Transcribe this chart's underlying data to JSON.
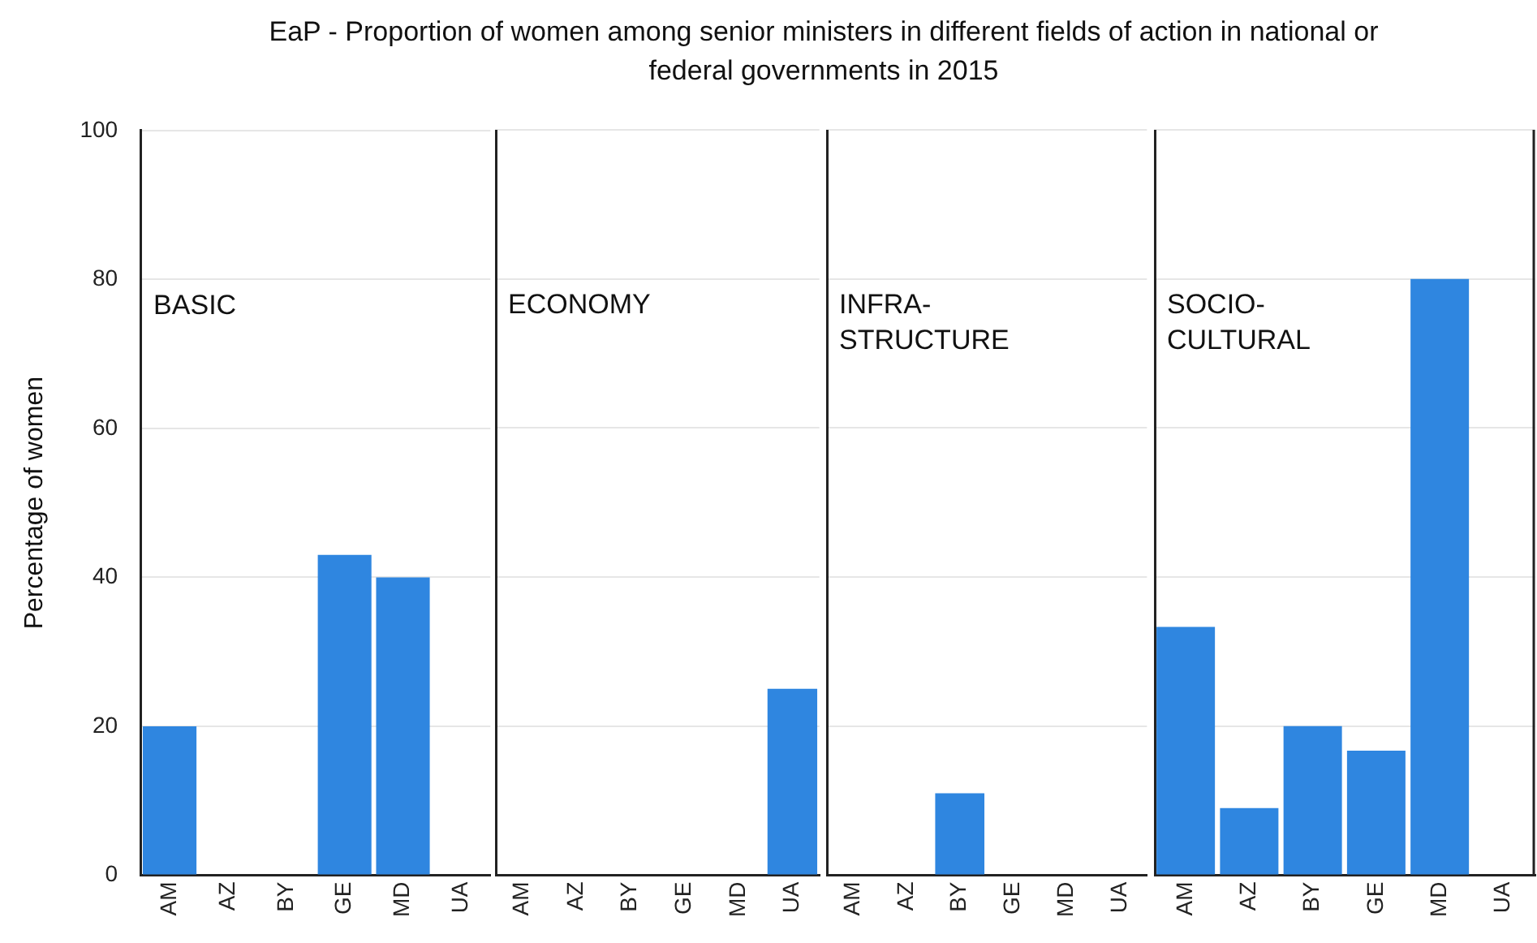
{
  "chart_data": [
    {
      "type": "bar",
      "title": "EaP - Proportion of women among senior ministers in different fields of action in national or federal governments in 2015",
      "ylabel": "Percentage of women",
      "annotations": [
        "BASIC"
      ],
      "categories": [
        "AM",
        "AZ",
        "BY",
        "GE",
        "MD",
        "UA"
      ],
      "values": [
        20,
        0,
        0,
        43,
        40,
        0
      ],
      "color": "#2f86e0",
      "ylim": [
        0,
        100
      ],
      "yticks": [
        0,
        20,
        40,
        60,
        80,
        100
      ],
      "grid": "y"
    },
    {
      "type": "bar",
      "annotations": [
        "ECONOMY"
      ],
      "categories": [
        "AM",
        "AZ",
        "BY",
        "GE",
        "MD",
        "UA"
      ],
      "values": [
        0,
        0,
        0,
        0,
        0,
        25
      ],
      "color": "#2f86e0",
      "ylim": [
        0,
        100
      ],
      "yticks": [
        0,
        20,
        40,
        60,
        80,
        100
      ],
      "grid": "y",
      "tick_labels": "x"
    },
    {
      "type": "bar",
      "annotations": [
        "INFRA-\nSTRUCTURE"
      ],
      "categories": [
        "AM",
        "AZ",
        "BY",
        "GE",
        "MD",
        "UA"
      ],
      "values": [
        0,
        0,
        11,
        0,
        0,
        0
      ],
      "color": "#2f86e0",
      "ylim": [
        0,
        100
      ],
      "yticks": [
        0,
        20,
        40,
        60,
        80,
        100
      ],
      "grid": "y",
      "tick_labels": "x"
    },
    {
      "type": "bar",
      "annotations": [
        "SOCIO-\nCULTURAL"
      ],
      "categories": [
        "AM",
        "AZ",
        "BY",
        "GE",
        "MD",
        "UA"
      ],
      "values": [
        33.3,
        9,
        20,
        16.7,
        80,
        0
      ],
      "color": "#2f86e0",
      "ylim": [
        0,
        100
      ],
      "yticks": [
        0,
        20,
        40,
        60,
        80,
        100
      ],
      "grid": "y",
      "tick_labels": "x"
    }
  ]
}
